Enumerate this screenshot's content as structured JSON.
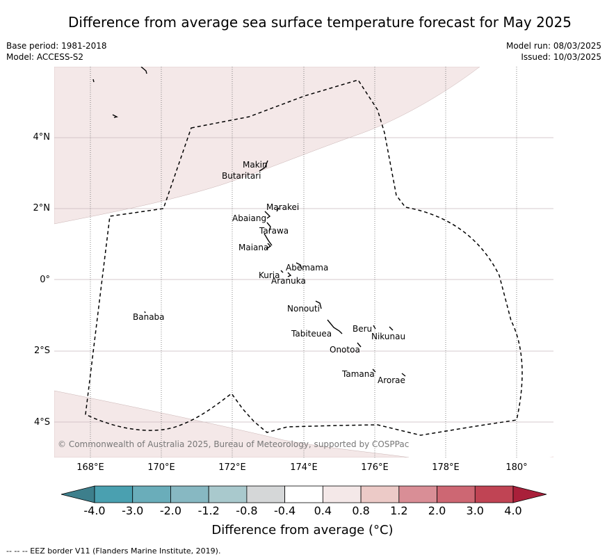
{
  "title": "Difference from average sea surface temperature forecast for May 2025",
  "meta_left": {
    "base_period": "Base period: 1981-2018",
    "model": "Model: ACCESS-S2"
  },
  "meta_right": {
    "model_run": "Model run: 08/03/2025",
    "issued": "Issued: 10/03/2025"
  },
  "map": {
    "lat_labels": [
      "4°N",
      "2°N",
      "0°",
      "2°S",
      "4°S"
    ],
    "lon_labels": [
      "168°E",
      "170°E",
      "172°E",
      "174°E",
      "176°E",
      "178°E",
      "180°"
    ],
    "places": [
      "Makin",
      "Butaritari",
      "Marakei",
      "Abaiang",
      "Tarawa",
      "Maiana",
      "Abemama",
      "Kuria",
      "Aranuka",
      "Nonouti",
      "Banaba",
      "Beru",
      "Nikunau",
      "Tabiteuea",
      "Onotoa",
      "Tamana",
      "Arorae"
    ],
    "copyright": "© Commonwealth of Australia 2025, Bureau of Meteorology, supported by COSPPac",
    "shaded_category": "0.4 to 0.8",
    "shaded_color": "#f4e8e8"
  },
  "colorbar": {
    "ticks": [
      "-4.0",
      "-3.0",
      "-2.0",
      "-1.2",
      "-0.8",
      "-0.4",
      "0.4",
      "0.8",
      "1.2",
      "2.0",
      "3.0",
      "4.0"
    ],
    "colors": [
      "#3d7f8c",
      "#4aa0b0",
      "#6aadba",
      "#87b8c2",
      "#a9c9cd",
      "#d5d7d8",
      "#ffffff",
      "#f4e8e8",
      "#eccac7",
      "#d98e96",
      "#cd6773",
      "#c04454",
      "#a9203a"
    ],
    "label": "Difference from average (°C)"
  },
  "footnote": "--  --  -- EEZ border V11 (Flanders Marine Institute, 2019)."
}
